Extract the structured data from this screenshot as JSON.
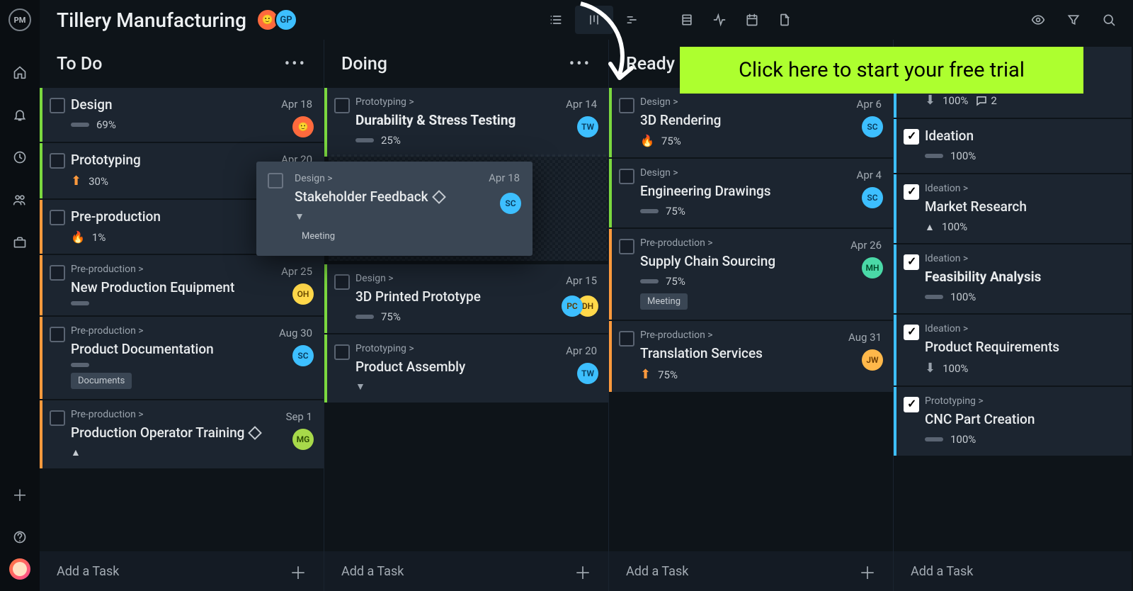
{
  "header": {
    "title": "Tillery Manufacturing",
    "avatars": [
      {
        "bg": "#ff6a3d",
        "initials": ""
      },
      {
        "bg": "#3dbfff",
        "initials": "GP",
        "text": "#083a5a"
      }
    ]
  },
  "cta": "Click here to start your free trial",
  "addTaskLabel": "Add a Task",
  "columns": [
    {
      "title": "To Do"
    },
    {
      "title": "Doing"
    },
    {
      "title": "Ready"
    },
    {
      "title": ""
    }
  ],
  "edge": {
    "green": "#7bd83f",
    "orange": "#ff9a3d",
    "blue": "#3dbfff"
  },
  "todo": [
    {
      "edge": "green",
      "title": "Design",
      "date": "Apr 18",
      "pct": "69%",
      "avatar": {
        "bg": "#ff6a3d",
        "initials": ""
      }
    },
    {
      "edge": "green",
      "title": "Prototyping",
      "date": "Apr 20",
      "pct": "30%",
      "priority": "up"
    },
    {
      "edge": "orange",
      "title": "Pre-production",
      "pct": "1%",
      "priority": "fire"
    },
    {
      "edge": "orange",
      "tag": "Pre-production >",
      "title": "New Production Equipment",
      "date": "Apr 25",
      "avatar": {
        "bg": "#ffd84a",
        "initials": "OH",
        "text": "#6a4a00"
      }
    },
    {
      "edge": "orange",
      "tag": "Pre-production >",
      "title": "Product Documentation",
      "date": "Aug 30",
      "avatar": {
        "bg": "#3dbfff",
        "initials": "SC",
        "text": "#083a5a"
      },
      "label": "Documents"
    },
    {
      "edge": "orange",
      "tag": "Pre-production >",
      "title": "Production Operator Training",
      "date": "Sep 1",
      "avatar": {
        "bg": "#a7d94a",
        "initials": "MG",
        "text": "#2a4a00"
      },
      "diamond": true,
      "priority": "caret-up"
    }
  ],
  "doing": [
    {
      "edge": "green",
      "tag": "Prototyping >",
      "title": "Durability & Stress Testing",
      "bold": true,
      "date": "Apr 14",
      "pct": "25%",
      "avatar": {
        "bg": "#3dbfff",
        "initials": "TW",
        "text": "#083a5a"
      }
    },
    {
      "edge": "green",
      "tag": "Design >",
      "title": "3D Printed Prototype",
      "date": "Apr 15",
      "pct": "75%",
      "avatars": [
        {
          "bg": "#ffd84a",
          "initials": "DH"
        },
        {
          "bg": "#3dbfff",
          "initials": "PC"
        }
      ]
    },
    {
      "edge": "green",
      "tag": "Prototyping >",
      "title": "Product Assembly",
      "date": "Apr 20",
      "avatar": {
        "bg": "#3dbfff",
        "initials": "TW",
        "text": "#083a5a"
      },
      "priority": "caret-down"
    }
  ],
  "ready": [
    {
      "edge": "green",
      "tag": "Design >",
      "title": "3D Rendering",
      "date": "Apr 6",
      "pct": "75%",
      "priority": "fire",
      "avatar": {
        "bg": "#3dbfff",
        "initials": "SC",
        "text": "#083a5a"
      }
    },
    {
      "edge": "green",
      "tag": "Design >",
      "title": "Engineering Drawings",
      "date": "Apr 4",
      "pct": "75%",
      "avatar": {
        "bg": "#3dbfff",
        "initials": "SC",
        "text": "#083a5a"
      }
    },
    {
      "edge": "orange",
      "tag": "Pre-production >",
      "title": "Supply Chain Sourcing",
      "date": "Apr 26",
      "pct": "75%",
      "avatar": {
        "bg": "#4ad9a7",
        "initials": "MH",
        "text": "#004a2a"
      },
      "label": "Meeting"
    },
    {
      "edge": "orange",
      "tag": "Pre-production >",
      "title": "Translation Services",
      "date": "Aug 31",
      "pct": "75%",
      "priority": "up",
      "avatar": {
        "bg": "#ffb84a",
        "initials": "JW",
        "text": "#6a3a00"
      }
    }
  ],
  "done": [
    {
      "edge": "blue",
      "tag": "Ideation >",
      "title": "Stakeholder Feedback",
      "pct": "100%",
      "diamond": true,
      "priority": "down",
      "comments": "2"
    },
    {
      "edge": "blue",
      "title": "Ideation",
      "pct": "100%"
    },
    {
      "edge": "blue",
      "tag": "Ideation >",
      "title": "Market Research",
      "pct": "100%",
      "priority": "caret-up"
    },
    {
      "edge": "blue",
      "tag": "Ideation >",
      "title": "Feasibility Analysis",
      "bold": true,
      "pct": "100%"
    },
    {
      "edge": "blue",
      "tag": "Ideation >",
      "title": "Product Requirements",
      "pct": "100%",
      "priority": "down"
    },
    {
      "edge": "blue",
      "tag": "Prototyping >",
      "title": "CNC Part Creation",
      "pct": "100%"
    }
  ],
  "floating": {
    "tag": "Design >",
    "title": "Stakeholder Feedback",
    "date": "Apr 18",
    "avatar": {
      "bg": "#3dbfff",
      "initials": "SC",
      "text": "#083a5a"
    },
    "label": "Meeting"
  }
}
